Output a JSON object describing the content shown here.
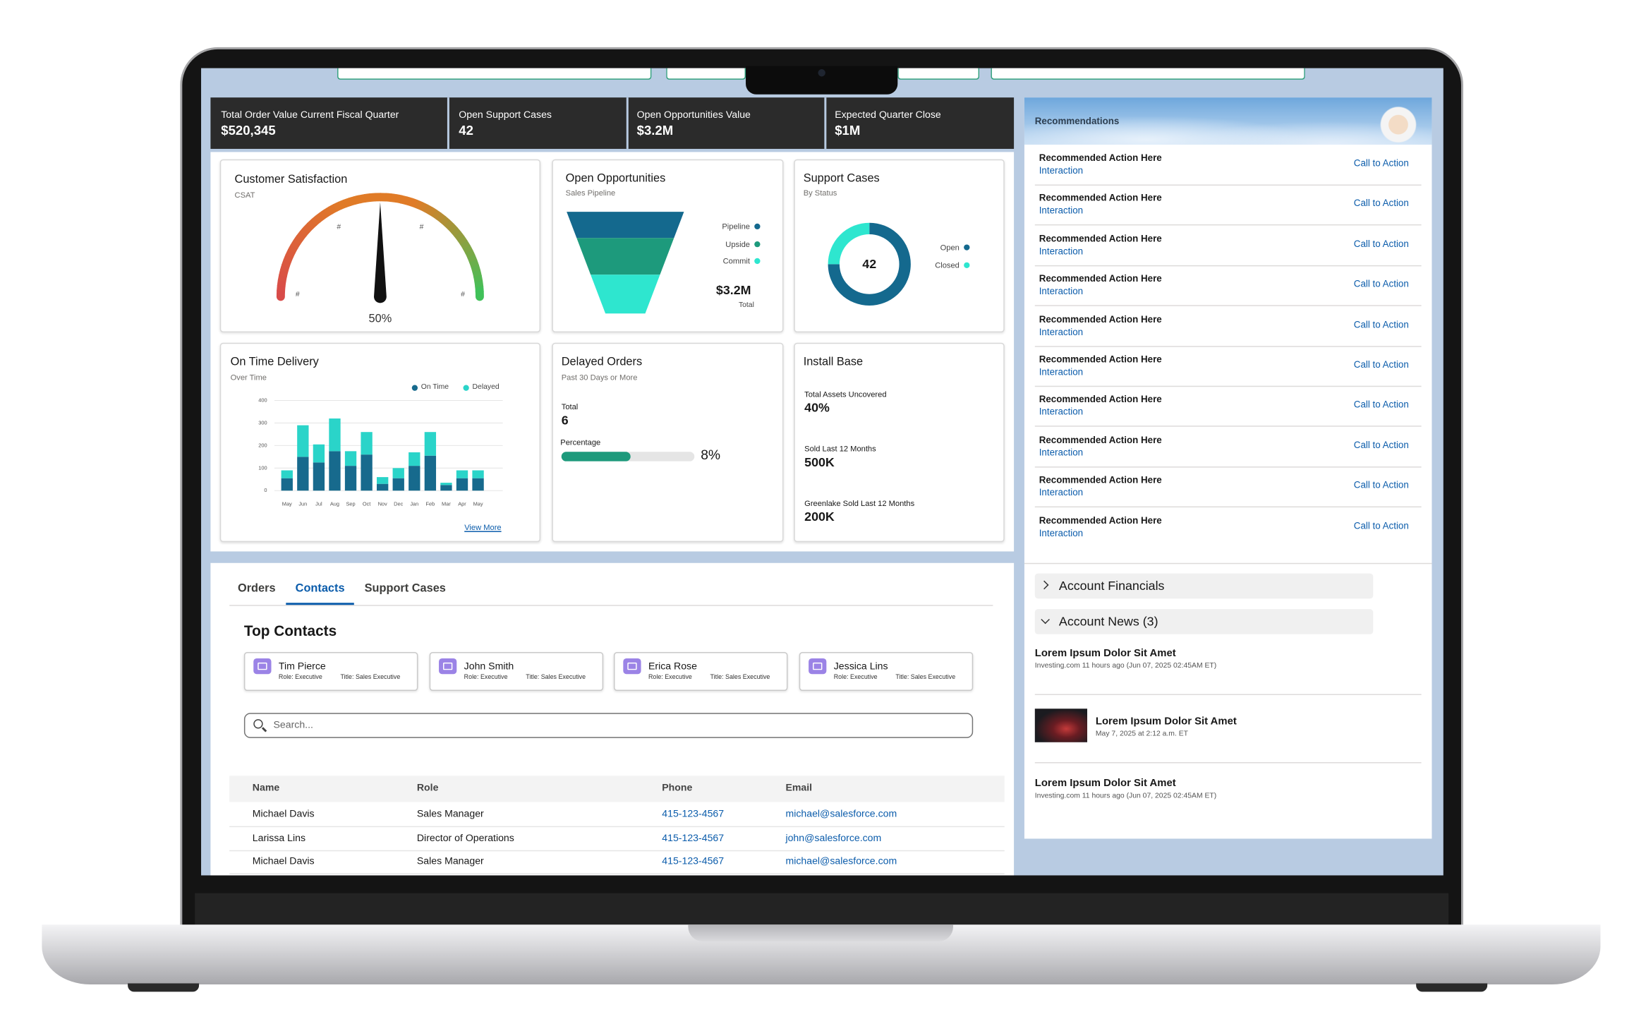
{
  "kpis": [
    {
      "label": "Total Order Value Current Fiscal Quarter",
      "value": "$520,345"
    },
    {
      "label": "Open Support Cases",
      "value": "42"
    },
    {
      "label": "Open Opportunities Value",
      "value": "$3.2M"
    },
    {
      "label": "Expected Quarter Close",
      "value": "$1M"
    }
  ],
  "customer_satisfaction": {
    "title": "Customer Satisfaction",
    "subtitle": "CSAT",
    "gauge_ticks": [
      "#",
      "#",
      "#",
      "#"
    ],
    "range": [
      0,
      100
    ],
    "value": 50,
    "label": "50%"
  },
  "open_opportunities": {
    "title": "Open Opportunities",
    "subtitle": "Sales Pipeline",
    "stages": [
      {
        "name": "Pipeline",
        "color": "#14698e"
      },
      {
        "name": "Upside",
        "color": "#1d9a7c"
      },
      {
        "name": "Commit",
        "color": "#2ee6cf"
      }
    ],
    "total_value": "$3.2M",
    "total_label": "Total"
  },
  "support_cases": {
    "type": "donut",
    "title": "Support Cases",
    "subtitle": "By Status",
    "center_label": "42",
    "series": [
      {
        "name": "Open",
        "color": "#14698e",
        "value": 75
      },
      {
        "name": "Closed",
        "color": "#2ee6cf",
        "value": 25
      }
    ]
  },
  "on_time_delivery": {
    "type": "bar",
    "title": "On Time Delivery",
    "subtitle": "Over Time",
    "categories": [
      "May",
      "Jun",
      "Jul",
      "Aug",
      "Sep",
      "Oct",
      "Nov",
      "Dec",
      "Jan",
      "Feb",
      "Mar",
      "Apr",
      "May"
    ],
    "series": [
      {
        "name": "On Time",
        "color": "#176a8d",
        "values": [
          55,
          150,
          125,
          175,
          110,
          160,
          30,
          55,
          110,
          155,
          25,
          55,
          55
        ]
      },
      {
        "name": "Delayed",
        "color": "#2ad4c9",
        "values": [
          35,
          140,
          80,
          145,
          65,
          100,
          30,
          45,
          60,
          105,
          10,
          35,
          35
        ]
      }
    ],
    "stacked": true,
    "ylim": [
      0,
      400
    ],
    "yticks": [
      0,
      100,
      200,
      300,
      400
    ],
    "grid": true,
    "link": "View More"
  },
  "delayed_orders": {
    "title": "Delayed Orders",
    "subtitle": "Past 30 Days or More",
    "total_label": "Total",
    "total": "6",
    "percentage_label": "Percentage",
    "percentage": "8%"
  },
  "install_base": {
    "title": "Install Base",
    "metrics": [
      {
        "label": "Total Assets Uncovered",
        "value": "40%"
      },
      {
        "label": "Sold Last 12 Months",
        "value": "500K"
      },
      {
        "label": "Greenlake Sold Last 12 Months",
        "value": "200K"
      }
    ]
  },
  "tabs": [
    "Orders",
    "Contacts",
    "Support Cases"
  ],
  "top_contacts": {
    "title": "Top Contacts",
    "contacts": [
      {
        "name": "Tim Pierce",
        "role": "Role: Executive",
        "job_title": "Title: Sales Executive"
      },
      {
        "name": "John Smith",
        "role": "Role: Executive",
        "job_title": "Title: Sales Executive"
      },
      {
        "name": "Erica Rose",
        "role": "Role: Executive",
        "job_title": "Title: Sales Executive"
      },
      {
        "name": "Jessica Lins",
        "role": "Role: Executive",
        "job_title": "Title: Sales Executive"
      }
    ]
  },
  "search_placeholder": "Search...",
  "table": {
    "headers": [
      "Name",
      "Role",
      "Phone",
      "Email"
    ],
    "rows": [
      [
        "Michael Davis",
        "Sales Manager",
        "415-123-4567",
        "michael@salesforce.com"
      ],
      [
        "Larissa Lins",
        "Director of Operations",
        "415-123-4567",
        "john@salesforce.com"
      ],
      [
        "Michael Davis",
        "Sales Manager",
        "415-123-4567",
        "michael@salesforce.com"
      ]
    ]
  },
  "recommendations": {
    "title": "Recommendations",
    "items": [
      {
        "title": "Recommended Action Here",
        "subtitle": "Interaction",
        "action": "Call to Action"
      },
      {
        "title": "Recommended Action Here",
        "subtitle": "Interaction",
        "action": "Call to Action"
      },
      {
        "title": "Recommended Action Here",
        "subtitle": "Interaction",
        "action": "Call to Action"
      },
      {
        "title": "Recommended Action Here",
        "subtitle": "Interaction",
        "action": "Call to Action"
      },
      {
        "title": "Recommended Action Here",
        "subtitle": "Interaction",
        "action": "Call to Action"
      },
      {
        "title": "Recommended Action Here",
        "subtitle": "Interaction",
        "action": "Call to Action"
      },
      {
        "title": "Recommended Action Here",
        "subtitle": "Interaction",
        "action": "Call to Action"
      },
      {
        "title": "Recommended Action Here",
        "subtitle": "Interaction",
        "action": "Call to Action"
      },
      {
        "title": "Recommended Action Here",
        "subtitle": "Interaction",
        "action": "Call to Action"
      },
      {
        "title": "Recommended Action Here",
        "subtitle": "Interaction",
        "action": "Call to Action"
      }
    ]
  },
  "accordions": [
    "Account Financials",
    "Account News (3)"
  ],
  "news": [
    {
      "title": "Lorem Ipsum Dolor Sit Amet",
      "meta": "Investing.com 11 hours ago (Jun 07, 2025 02:45AM ET)"
    },
    {
      "title": "Lorem Ipsum Dolor Sit Amet",
      "meta": "May 7, 2025 at 2:12 a.m. ET"
    },
    {
      "title": "Lorem Ipsum Dolor Sit Amet",
      "meta": "Investing.com 11 hours ago (Jun 07, 2025 02:45AM ET)"
    }
  ]
}
